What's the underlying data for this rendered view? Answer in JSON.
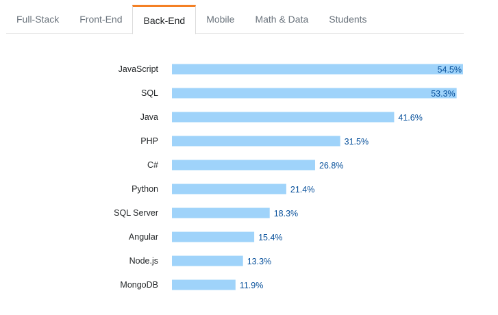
{
  "tabs": [
    {
      "label": "Full-Stack",
      "active": false
    },
    {
      "label": "Front-End",
      "active": false
    },
    {
      "label": "Back-End",
      "active": true
    },
    {
      "label": "Mobile",
      "active": false
    },
    {
      "label": "Math & Data",
      "active": false
    },
    {
      "label": "Students",
      "active": false
    }
  ],
  "colors": {
    "bar": "#9fd3fa",
    "value_text": "#07509b",
    "accent": "#f48024"
  },
  "chart_data": {
    "type": "bar",
    "orientation": "horizontal",
    "categories": [
      "JavaScript",
      "SQL",
      "Java",
      "PHP",
      "C#",
      "Python",
      "SQL Server",
      "Angular",
      "Node.js",
      "MongoDB"
    ],
    "values": [
      54.5,
      53.3,
      41.6,
      31.5,
      26.8,
      21.4,
      18.3,
      15.4,
      13.3,
      11.9
    ],
    "value_labels": [
      "54.5%",
      "53.3%",
      "41.6%",
      "31.5%",
      "26.8%",
      "21.4%",
      "18.3%",
      "15.4%",
      "13.3%",
      "11.9%"
    ],
    "xlim": [
      0,
      54.5
    ],
    "grid": false,
    "title": "",
    "xlabel": "",
    "ylabel": ""
  }
}
